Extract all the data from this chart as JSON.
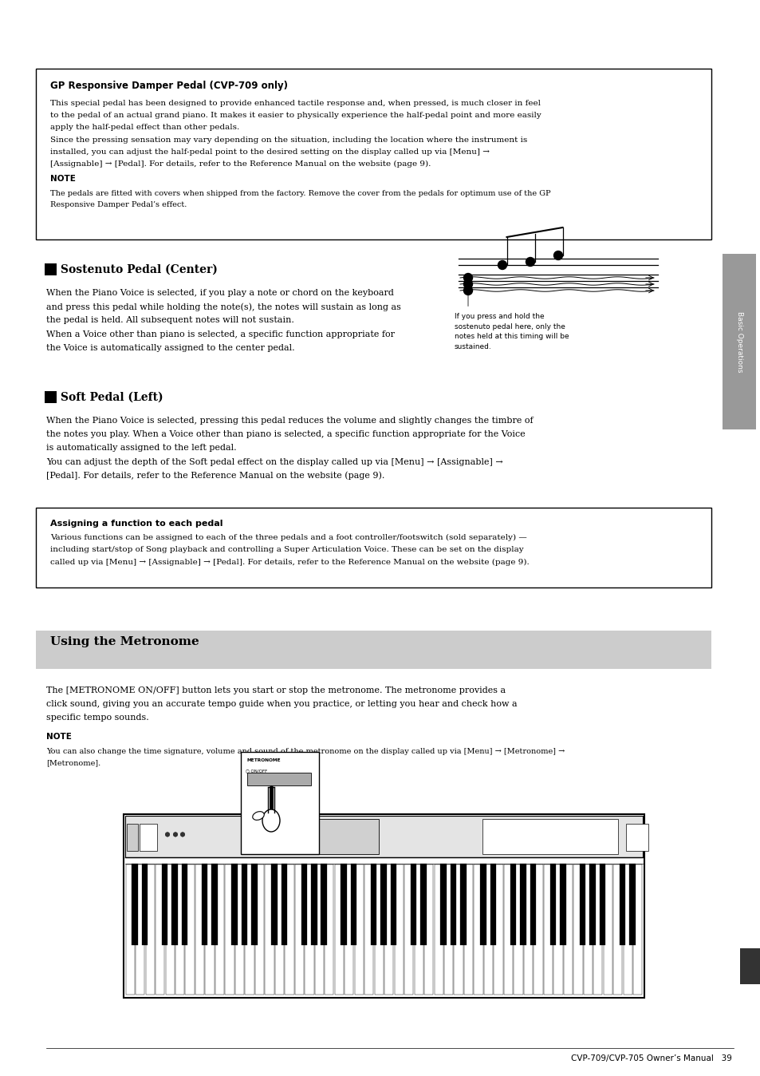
{
  "page_bg": "#ffffff",
  "page_width": 9.54,
  "page_height": 13.48,
  "dpi": 100,
  "ml": 0.58,
  "mr": 0.52,
  "sidebar_text": "Basic Operations",
  "footer_text": "CVP-709/CVP-705 Owner’s Manual",
  "page_number": "39",
  "box1_title": "GP Responsive Damper Pedal (CVP-709 only)",
  "box1_lines": [
    "This special pedal has been designed to provide enhanced tactile response and, when pressed, is much closer in feel",
    "to the pedal of an actual grand piano. It makes it easier to physically experience the half-pedal point and more easily",
    "apply the half-pedal effect than other pedals.",
    "Since the pressing sensation may vary depending on the situation, including the location where the instrument is",
    "installed, you can adjust the half-pedal point to the desired setting on the display called up via [Menu] →",
    "[Assignable] → [Pedal]. For details, refer to the Reference Manual on the website (page 9)."
  ],
  "box1_note_label": "NOTE",
  "box1_note_lines": [
    "The pedals are fitted with covers when shipped from the factory. Remove the cover from the pedals for optimum use of the GP",
    "Responsive Damper Pedal’s effect."
  ],
  "s1_title": "Sostenuto Pedal (Center)",
  "s1_lines": [
    "When the Piano Voice is selected, if you play a note or chord on the keyboard",
    "and press this pedal while holding the note(s), the notes will sustain as long as",
    "the pedal is held. All subsequent notes will not sustain.",
    "When a Voice other than piano is selected, a specific function appropriate for",
    "the Voice is automatically assigned to the center pedal."
  ],
  "img_caption": [
    "If you press and hold the",
    "sostenuto pedal here, only the",
    "notes held at this timing will be",
    "sustained."
  ],
  "s2_title": "Soft Pedal (Left)",
  "s2_lines": [
    "When the Piano Voice is selected, pressing this pedal reduces the volume and slightly changes the timbre of",
    "the notes you play. When a Voice other than piano is selected, a specific function appropriate for the Voice",
    "is automatically assigned to the left pedal.",
    "You can adjust the depth of the Soft pedal effect on the display called up via [Menu] → [Assignable] →",
    "[Pedal]. For details, refer to the Reference Manual on the website (page 9)."
  ],
  "box2_title": "Assigning a function to each pedal",
  "box2_lines": [
    "Various functions can be assigned to each of the three pedals and a foot controller/footswitch (sold separately) —",
    "including start/stop of Song playback and controlling a Super Articulation Voice. These can be set on the display",
    "called up via [Menu] → [Assignable] → [Pedal]. For details, refer to the Reference Manual on the website (page 9)."
  ],
  "metro_title": "Using the Metronome",
  "metro_lines": [
    "The [METRONOME ON/OFF] button lets you start or stop the metronome. The metronome provides a",
    "click sound, giving you an accurate tempo guide when you practice, or letting you hear and check how a",
    "specific tempo sounds."
  ],
  "metro_note_label": "NOTE",
  "metro_note_lines": [
    "You can also change the time signature, volume and sound of the metronome on the display called up via [Menu] → [Metronome] →",
    "[Metronome]."
  ]
}
